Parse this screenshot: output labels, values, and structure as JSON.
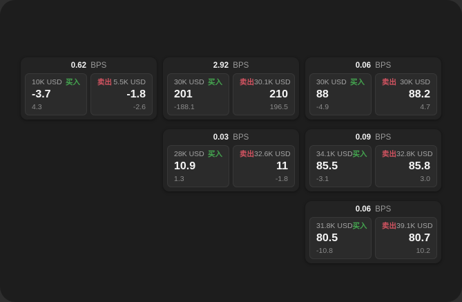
{
  "colors": {
    "surface": "#1d1d1d",
    "outside_background": "#2e2e2e",
    "card_background": "#232323",
    "panel_background": "#2b2b2b",
    "panel_border": "#383838",
    "buy_green": "#44a44f",
    "sell_red": "#d05360",
    "primary_text": "#f5f5f5",
    "muted_text": "#9a9a9a"
  },
  "cards": [
    {
      "bps_value": "0.62",
      "bps_label": "BPS",
      "buy": {
        "size": "10K USD",
        "tag": "买入",
        "price": "-3.7",
        "delta": "4.3"
      },
      "sell": {
        "tag": "卖出",
        "size": "5.5K USD",
        "price": "-1.8",
        "delta": "-2.6"
      }
    },
    {
      "bps_value": "2.92",
      "bps_label": "BPS",
      "buy": {
        "size": "30K USD",
        "tag": "买入",
        "price": "201",
        "delta": "-188.1"
      },
      "sell": {
        "tag": "卖出",
        "size": "30.1K USD",
        "price": "210",
        "delta": "196.5"
      }
    },
    {
      "bps_value": "0.06",
      "bps_label": "BPS",
      "buy": {
        "size": "30K USD",
        "tag": "买入",
        "price": "88",
        "delta": "-4.9"
      },
      "sell": {
        "tag": "卖出",
        "size": "30K USD",
        "price": "88.2",
        "delta": "4.7"
      }
    },
    {
      "bps_value": "0.03",
      "bps_label": "BPS",
      "buy": {
        "size": "28K USD",
        "tag": "买入",
        "price": "10.9",
        "delta": "1.3"
      },
      "sell": {
        "tag": "卖出",
        "size": "32.6K USD",
        "price": "11",
        "delta": "-1.8"
      }
    },
    {
      "bps_value": "0.09",
      "bps_label": "BPS",
      "buy": {
        "size": "34.1K USD",
        "tag": "买入",
        "price": "85.5",
        "delta": "-3.1"
      },
      "sell": {
        "tag": "卖出",
        "size": "32.8K USD",
        "price": "85.8",
        "delta": "3.0"
      }
    },
    {
      "bps_value": "0.06",
      "bps_label": "BPS",
      "buy": {
        "size": "31.8K USD",
        "tag": "买入",
        "price": "80.5",
        "delta": "-10.8"
      },
      "sell": {
        "tag": "卖出",
        "size": "39.1K USD",
        "price": "80.7",
        "delta": "10.2"
      }
    }
  ]
}
